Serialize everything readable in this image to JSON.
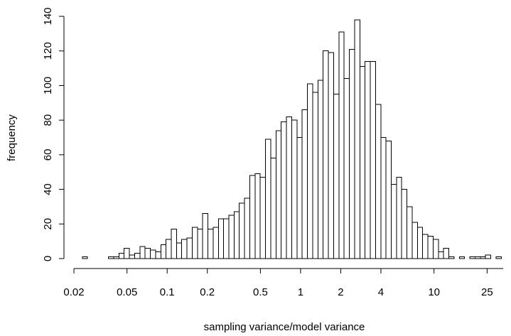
{
  "chart_data": {
    "type": "bar",
    "xlabel": "sampling variance/model variance",
    "ylabel": "frequency",
    "x_scale": "log",
    "xlim": [
      0.02,
      33
    ],
    "ylim": [
      0,
      140
    ],
    "x_ticks": [
      0.02,
      0.05,
      0.1,
      0.2,
      0.5,
      1,
      2,
      4,
      10,
      25
    ],
    "x_tick_labels": [
      "0.02",
      "0.05",
      "0.1",
      "0.2",
      "0.5",
      "1",
      "2",
      "4",
      "10",
      "25"
    ],
    "y_ticks": [
      0,
      20,
      40,
      60,
      80,
      100,
      120,
      140
    ],
    "y_tick_labels": [
      "0",
      "20",
      "40",
      "60",
      "80",
      "100",
      "120",
      "140"
    ],
    "grid": false,
    "bin_edges": [
      0.0231,
      0.0253,
      0.0277,
      0.0303,
      0.0332,
      0.0363,
      0.0397,
      0.0435,
      0.0476,
      0.0521,
      0.057,
      0.0624,
      0.0683,
      0.0748,
      0.0818,
      0.0896,
      0.0981,
      0.1073,
      0.1175,
      0.1286,
      0.1407,
      0.154,
      0.1686,
      0.1845,
      0.202,
      0.2211,
      0.242,
      0.2649,
      0.29,
      0.3174,
      0.3474,
      0.3803,
      0.4163,
      0.4556,
      0.4987,
      0.5459,
      0.5976,
      0.6541,
      0.716,
      0.7838,
      0.8579,
      0.9391,
      1.028,
      1.125,
      1.232,
      1.348,
      1.476,
      1.615,
      1.768,
      1.936,
      2.119,
      2.319,
      2.539,
      2.779,
      3.042,
      3.33,
      3.645,
      3.99,
      4.367,
      4.781,
      5.233,
      5.728,
      6.27,
      6.864,
      7.513,
      8.224,
      9.002,
      9.854,
      10.79,
      11.81,
      12.92,
      14.15,
      15.48,
      16.95,
      18.55,
      20.31,
      22.23,
      24.33,
      26.63,
      29.15,
      31.91
    ],
    "values": [
      1,
      0,
      0,
      0,
      0,
      1,
      1,
      3,
      6,
      2,
      3,
      7,
      6,
      5,
      4,
      8,
      11,
      17,
      9,
      11,
      12,
      18,
      17,
      26,
      17,
      18,
      23,
      23,
      25,
      27,
      32,
      35,
      48,
      49,
      47,
      69,
      58,
      74,
      79,
      82,
      80,
      70,
      86,
      101,
      96,
      103,
      120,
      119,
      95,
      131,
      104,
      121,
      138,
      111,
      114,
      114,
      89,
      70,
      68,
      43,
      47,
      40,
      30,
      21,
      18,
      14,
      13,
      11,
      4,
      6,
      1,
      0,
      1,
      0,
      1,
      1,
      1,
      2,
      0,
      1
    ]
  }
}
